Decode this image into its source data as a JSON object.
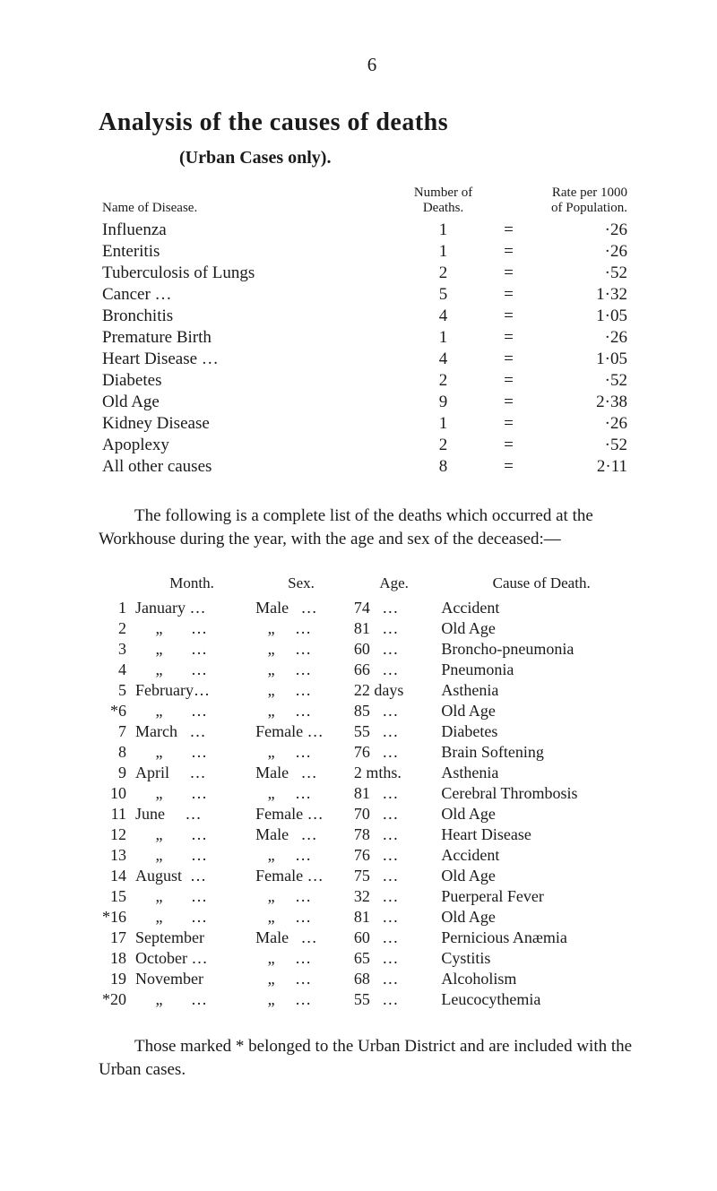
{
  "page_number": "6",
  "title": "Analysis of the causes of deaths",
  "subtitle": "(Urban Cases only).",
  "table1": {
    "header": {
      "name": "Name of Disease.",
      "number": "Number of Deaths.",
      "rate": "Rate per 1000 of Population."
    },
    "rows": [
      {
        "name": "Influenza",
        "num": "1",
        "eq": "=",
        "rate": "·26"
      },
      {
        "name": "Enteritis",
        "num": "1",
        "eq": "=",
        "rate": "·26"
      },
      {
        "name": "Tuberculosis of Lungs",
        "num": "2",
        "eq": "=",
        "rate": "·52"
      },
      {
        "name": "Cancer …",
        "num": "5",
        "eq": "=",
        "rate": "1·32"
      },
      {
        "name": "Bronchitis",
        "num": "4",
        "eq": "=",
        "rate": "1·05"
      },
      {
        "name": "Premature Birth",
        "num": "1",
        "eq": "=",
        "rate": "·26"
      },
      {
        "name": "Heart Disease …",
        "num": "4",
        "eq": "=",
        "rate": "1·05"
      },
      {
        "name": "Diabetes",
        "num": "2",
        "eq": "=",
        "rate": "·52"
      },
      {
        "name": "Old Age",
        "num": "9",
        "eq": "=",
        "rate": "2·38"
      },
      {
        "name": "Kidney Disease",
        "num": "1",
        "eq": "=",
        "rate": "·26"
      },
      {
        "name": "Apoplexy",
        "num": "2",
        "eq": "=",
        "rate": "·52"
      },
      {
        "name": "All other causes",
        "num": "8",
        "eq": "=",
        "rate": "2·11"
      }
    ]
  },
  "paragraph": "The following is a complete list of the deaths which occurred at the Workhouse during the year, with the age and sex of the deceased:—",
  "table2": {
    "header": {
      "month": "Month.",
      "sex": "Sex.",
      "age": "Age.",
      "cause": "Cause of Death."
    },
    "rows": [
      {
        "idx": "1",
        "month": "January …",
        "sex": "Male   …",
        "age": "74   …",
        "cause": "Accident"
      },
      {
        "idx": "2",
        "month": "     „       …",
        "sex": "   „     …",
        "age": "81   …",
        "cause": "Old Age"
      },
      {
        "idx": "3",
        "month": "     „       …",
        "sex": "   „     …",
        "age": "60   …",
        "cause": "Broncho-pneumonia"
      },
      {
        "idx": "4",
        "month": "     „       …",
        "sex": "   „     …",
        "age": "66   …",
        "cause": "Pneumonia"
      },
      {
        "idx": "5",
        "month": "February…",
        "sex": "   „     …",
        "age": "22 days",
        "cause": "Asthenia"
      },
      {
        "idx": "*6",
        "month": "     „       …",
        "sex": "   „     …",
        "age": "85   …",
        "cause": "Old Age"
      },
      {
        "idx": "7",
        "month": "March   …",
        "sex": "Female …",
        "age": "55   …",
        "cause": "Diabetes"
      },
      {
        "idx": "8",
        "month": "     „       …",
        "sex": "   „     …",
        "age": "76   …",
        "cause": "Brain Softening"
      },
      {
        "idx": "9",
        "month": "April     …",
        "sex": "Male   …",
        "age": "2 mths.",
        "cause": "Asthenia"
      },
      {
        "idx": "10",
        "month": "     „       …",
        "sex": "   „     …",
        "age": "81   …",
        "cause": "Cerebral Thrombosis"
      },
      {
        "idx": "11",
        "month": "June     …",
        "sex": "Female …",
        "age": "70   …",
        "cause": "Old Age"
      },
      {
        "idx": "12",
        "month": "     „       …",
        "sex": "Male   …",
        "age": "78   …",
        "cause": "Heart Disease"
      },
      {
        "idx": "13",
        "month": "     „       …",
        "sex": "   „     …",
        "age": "76   …",
        "cause": "Accident"
      },
      {
        "idx": "14",
        "month": "August  …",
        "sex": "Female …",
        "age": "75   …",
        "cause": "Old Age"
      },
      {
        "idx": "15",
        "month": "     „       …",
        "sex": "   „     …",
        "age": "32   …",
        "cause": "Puerperal Fever"
      },
      {
        "idx": "*16",
        "month": "     „       …",
        "sex": "   „     …",
        "age": "81   …",
        "cause": "Old Age"
      },
      {
        "idx": "17",
        "month": "September",
        "sex": "Male   …",
        "age": "60   …",
        "cause": "Pernicious Anæmia"
      },
      {
        "idx": "18",
        "month": "October …",
        "sex": "   „     …",
        "age": "65   …",
        "cause": "Cystitis"
      },
      {
        "idx": "19",
        "month": "November",
        "sex": "   „     …",
        "age": "68   …",
        "cause": "Alcoholism"
      },
      {
        "idx": "*20",
        "month": "     „       …",
        "sex": "   „     …",
        "age": "55   …",
        "cause": "Leucocythemia"
      }
    ]
  },
  "footnote": "Those marked * belonged to the Urban District and are included with the Urban cases."
}
